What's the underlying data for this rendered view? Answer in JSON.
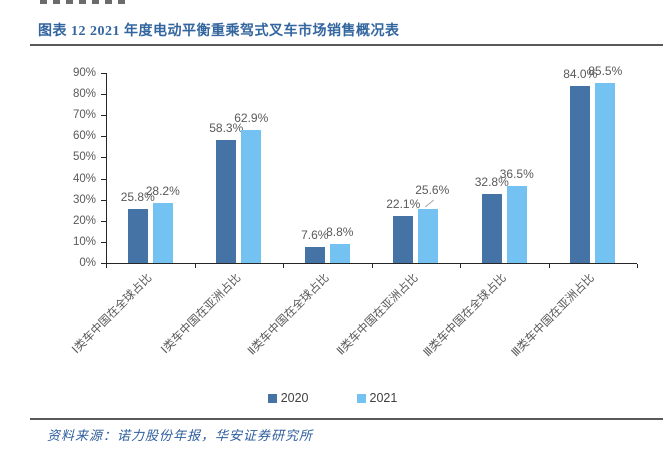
{
  "figure": {
    "title": "图表 12 2021 年度电动平衡重乘驾式叉车市场销售概况表",
    "source_note": "资料来源：诺力股份年报，华安证券研究所"
  },
  "colors": {
    "title_blue": "#33659f",
    "source_blue": "#2e5e9e",
    "bar_2020": "#4673a6",
    "bar_2021": "#74c2f1",
    "axis_line": "#262626",
    "axis_text": "#595959",
    "value_label": "#595959",
    "legend_text": "#404040",
    "rule_gray": "#595959",
    "leader_gray": "#a6a6a6"
  },
  "chart_data": {
    "type": "bar",
    "categories": [
      "Ⅰ类车中国在全球占比",
      "Ⅰ类车中国在亚洲占比",
      "Ⅱ类车中国在全球占比",
      "Ⅱ类车中国在亚洲占比",
      "Ⅲ类车中国在全球占比",
      "Ⅲ类车中国在亚洲占比"
    ],
    "series": [
      {
        "name": "2020",
        "values": [
          25.8,
          58.3,
          7.6,
          22.1,
          32.8,
          84.0
        ]
      },
      {
        "name": "2021",
        "values": [
          28.2,
          62.9,
          8.8,
          25.6,
          36.5,
          85.5
        ]
      }
    ],
    "value_labels": [
      [
        "25.8%",
        "58.3%",
        "7.6%",
        "22.1%",
        "32.8%",
        "84.0%"
      ],
      [
        "28.2%",
        "62.9%",
        "8.8%",
        "25.6%",
        "36.5%",
        "85.5%"
      ]
    ],
    "ylim": [
      0,
      90
    ],
    "ytick_step": 10,
    "ytick_labels": [
      "0%",
      "10%",
      "20%",
      "30%",
      "40%",
      "50%",
      "60%",
      "70%",
      "80%",
      "90%"
    ],
    "grid": false,
    "legend_position": "bottom"
  }
}
